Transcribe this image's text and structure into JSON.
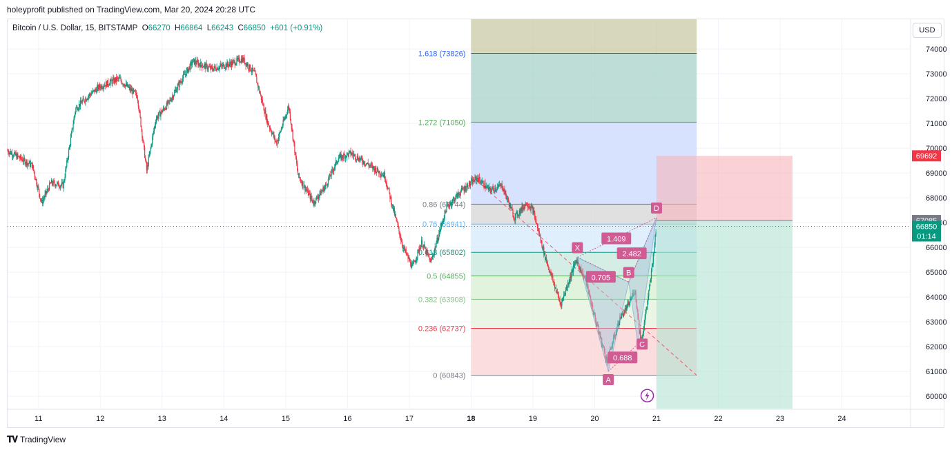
{
  "header": {
    "published": "holeyprofit published on TradingView.com, Mar 20, 2024 20:28 UTC"
  },
  "legend": {
    "symbol": "Bitcoin / U.S. Dollar, 15, BITSTAMP",
    "o_label": "O",
    "o_value": "66270",
    "h_label": "H",
    "h_value": "66864",
    "l_label": "L",
    "l_value": "66243",
    "c_label": "C",
    "c_value": "66850",
    "change": "+601 (+0.91%)"
  },
  "currency_button": "USD",
  "footer": {
    "brand": "TradingView",
    "brand_icon": "tradingview-logo-icon"
  },
  "colors": {
    "up": "#089981",
    "down": "#f23645",
    "fib_top": "#c6c8a4",
    "fib_blue": "#c9dafd",
    "target": "#f7b4b9",
    "stop": "#b2e3d4"
  },
  "chart_data": {
    "type": "candlestick",
    "symbol": "BTCUSD",
    "interval": "15",
    "ylim": [
      59500,
      75200
    ],
    "y_ticks": [
      60000,
      61000,
      62000,
      63000,
      64000,
      65000,
      66000,
      67000,
      68000,
      69000,
      70000,
      71000,
      72000,
      73000,
      74000
    ],
    "y_tick_labels": [
      "60000",
      "61000",
      "62000",
      "63000",
      "64000",
      "65000",
      "66000",
      "67000",
      "68000",
      "69000",
      "70000",
      "71000",
      "72000",
      "73000",
      "74000"
    ],
    "x_ticks": [
      11,
      12,
      13,
      14,
      15,
      16,
      17,
      18,
      19,
      20,
      21,
      22,
      23,
      24
    ],
    "x_tick_labels": [
      "11",
      "12",
      "13",
      "14",
      "15",
      "16",
      "17",
      "18",
      "19",
      "20",
      "21",
      "22",
      "23",
      "24"
    ],
    "xlim": [
      10.5,
      25.1
    ],
    "price_path": [
      [
        10.5,
        69900
      ],
      [
        10.7,
        69600
      ],
      [
        10.9,
        69300
      ],
      [
        11.05,
        67800
      ],
      [
        11.2,
        68600
      ],
      [
        11.4,
        68500
      ],
      [
        11.6,
        71600
      ],
      [
        11.8,
        72100
      ],
      [
        12.0,
        72500
      ],
      [
        12.3,
        72800
      ],
      [
        12.6,
        72100
      ],
      [
        12.75,
        69100
      ],
      [
        12.9,
        71200
      ],
      [
        13.1,
        71800
      ],
      [
        13.3,
        72700
      ],
      [
        13.5,
        73500
      ],
      [
        13.8,
        73200
      ],
      [
        14.1,
        73400
      ],
      [
        14.3,
        73600
      ],
      [
        14.5,
        73000
      ],
      [
        14.7,
        71100
      ],
      [
        14.85,
        70200
      ],
      [
        15.05,
        71700
      ],
      [
        15.2,
        68900
      ],
      [
        15.45,
        67800
      ],
      [
        15.65,
        68500
      ],
      [
        15.85,
        69600
      ],
      [
        16.05,
        69800
      ],
      [
        16.3,
        69400
      ],
      [
        16.6,
        68900
      ],
      [
        16.9,
        66000
      ],
      [
        17.05,
        65200
      ],
      [
        17.2,
        66200
      ],
      [
        17.35,
        65400
      ],
      [
        17.6,
        67600
      ],
      [
        17.85,
        68300
      ],
      [
        18.1,
        68800
      ],
      [
        18.3,
        68300
      ],
      [
        18.5,
        68500
      ],
      [
        18.7,
        67200
      ],
      [
        18.9,
        67800
      ],
      [
        19.0,
        67500
      ],
      [
        19.2,
        65600
      ],
      [
        19.45,
        63700
      ],
      [
        19.7,
        65500
      ],
      [
        19.85,
        64700
      ],
      [
        20.0,
        63200
      ],
      [
        20.2,
        61400
      ],
      [
        20.4,
        63100
      ],
      [
        20.55,
        63700
      ],
      [
        20.65,
        64300
      ],
      [
        20.75,
        62100
      ],
      [
        20.9,
        64600
      ],
      [
        21.0,
        66850
      ]
    ],
    "current_price": {
      "value": 66850,
      "label": "66850",
      "countdown": "01:14"
    },
    "price_tags": [
      {
        "value": 69692,
        "label": "69692"
      },
      {
        "value": 67085,
        "label": "67085"
      }
    ],
    "fibonacci": {
      "x_start": 18.0,
      "x_end": 21.65,
      "levels": [
        {
          "ratio": "1.618",
          "price": 73826,
          "label": "1.618 (73826)",
          "color": "#2962ff"
        },
        {
          "ratio": "1.272",
          "price": 71050,
          "label": "1.272 (71050)",
          "color": "#4caf50"
        },
        {
          "ratio": "0.86",
          "price": 67744,
          "label": "0.86 (67744)",
          "color": "#787b86"
        },
        {
          "ratio": "0.76",
          "price": 66941,
          "label": "0.76 (66941)",
          "color": "#64b5f6"
        },
        {
          "ratio": "0.618",
          "price": 65802,
          "label": "0.618 (65802)",
          "color": "#089981"
        },
        {
          "ratio": "0.5",
          "price": 64855,
          "label": "0.5 (64855)",
          "color": "#4caf50"
        },
        {
          "ratio": "0.382",
          "price": 63908,
          "label": "0.382 (63908)",
          "color": "#81c784"
        },
        {
          "ratio": "0.236",
          "price": 62737,
          "label": "0.236 (62737)",
          "color": "#f23645"
        },
        {
          "ratio": "0",
          "price": 60843,
          "label": "0 (60843)",
          "color": "#787b86"
        }
      ],
      "top_band_price": 75200
    },
    "pattern": {
      "points": [
        {
          "label": "X",
          "x": 19.72,
          "price": 65600
        },
        {
          "label": "A",
          "x": 20.22,
          "price": 61000
        },
        {
          "label": "B",
          "x": 20.55,
          "price": 64600
        },
        {
          "label": "C",
          "x": 20.7,
          "price": 62100
        },
        {
          "label": "D",
          "x": 21.0,
          "price": 67200
        }
      ],
      "ratios": [
        {
          "label": "1.409",
          "x": 20.35,
          "price": 66350
        },
        {
          "label": "0.705",
          "x": 20.1,
          "price": 64800
        },
        {
          "label": "2.482",
          "x": 20.6,
          "price": 65750
        },
        {
          "label": "0.688",
          "x": 20.45,
          "price": 61550
        }
      ]
    },
    "trendline": {
      "from": [
        18.0,
        68900
      ],
      "to": [
        21.65,
        60843
      ]
    },
    "position": {
      "x_start": 21.0,
      "x_end": 23.2,
      "entry": 67085,
      "stop": 69692,
      "target": 59500
    },
    "event_icon": {
      "name": "lightning-icon",
      "x": 20.85,
      "price": 59800
    }
  }
}
